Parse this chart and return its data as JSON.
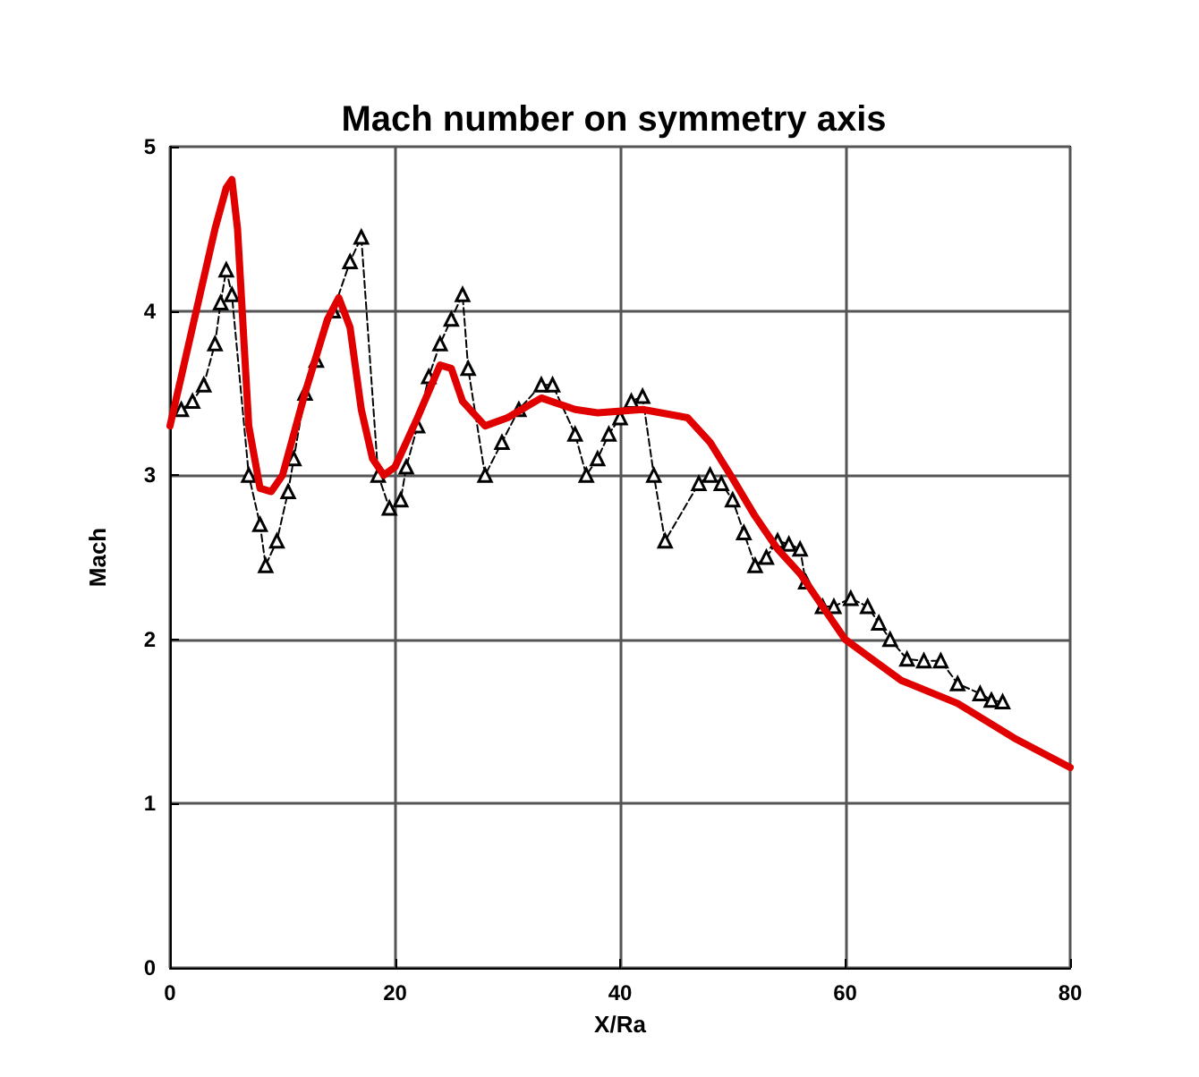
{
  "chart_data": {
    "type": "line",
    "title": "Mach number on symmetry axis",
    "xlabel": "X/Ra",
    "ylabel": "Mach",
    "xlim": [
      0,
      80
    ],
    "ylim": [
      0,
      5
    ],
    "xticks": [
      0,
      20,
      40,
      60,
      80
    ],
    "yticks": [
      0,
      1,
      2,
      3,
      4,
      5
    ],
    "grid": true,
    "series": [
      {
        "color": "#000000",
        "marker": "triangle",
        "line_style": "dashed",
        "x": [
          1,
          2,
          3,
          4,
          4.5,
          5,
          5.5,
          7,
          8,
          8.5,
          9.5,
          10.5,
          11,
          12,
          13,
          14.5,
          16,
          17,
          18.5,
          19.5,
          20.5,
          21,
          22,
          23,
          24,
          25,
          26,
          26.5,
          28,
          29.5,
          31,
          33,
          34,
          36,
          37,
          38,
          39,
          40,
          41,
          42,
          43,
          44,
          47,
          48,
          49,
          50,
          51,
          52,
          53,
          54,
          55,
          56,
          56.5,
          58,
          59,
          60.5,
          62,
          63,
          64,
          65.5,
          67,
          68.5,
          70,
          72,
          73,
          74
        ],
        "values": [
          3.4,
          3.45,
          3.55,
          3.8,
          4.05,
          4.25,
          4.1,
          3.0,
          2.7,
          2.45,
          2.6,
          2.9,
          3.1,
          3.5,
          3.7,
          4.0,
          4.3,
          4.45,
          3.0,
          2.8,
          2.85,
          3.05,
          3.3,
          3.6,
          3.8,
          3.95,
          4.1,
          3.65,
          3.0,
          3.2,
          3.4,
          3.55,
          3.55,
          3.25,
          3.0,
          3.1,
          3.25,
          3.35,
          3.45,
          3.48,
          3.0,
          2.6,
          2.95,
          3.0,
          2.95,
          2.85,
          2.65,
          2.45,
          2.5,
          2.6,
          2.58,
          2.55,
          2.35,
          2.2,
          2.2,
          2.25,
          2.2,
          2.1,
          2.0,
          1.88,
          1.87,
          1.87,
          1.73,
          1.67,
          1.63,
          1.62
        ]
      },
      {
        "color": "#e00000",
        "marker": "none",
        "line_style": "solid",
        "x": [
          0,
          1,
          2,
          3,
          4,
          5,
          5.5,
          6,
          7,
          8,
          9,
          10,
          12,
          14,
          15,
          16,
          17,
          18,
          19,
          20,
          22,
          24,
          25,
          26,
          28,
          30,
          33,
          36,
          38,
          42,
          46,
          48,
          50,
          52,
          54,
          56,
          58,
          60,
          62,
          65,
          70,
          75,
          80
        ],
        "values": [
          3.3,
          3.6,
          3.9,
          4.2,
          4.5,
          4.75,
          4.8,
          4.5,
          3.3,
          2.92,
          2.9,
          3.0,
          3.5,
          3.95,
          4.08,
          3.9,
          3.4,
          3.1,
          3.0,
          3.05,
          3.35,
          3.67,
          3.65,
          3.45,
          3.3,
          3.35,
          3.47,
          3.4,
          3.38,
          3.4,
          3.35,
          3.2,
          2.98,
          2.75,
          2.55,
          2.4,
          2.2,
          2.0,
          1.9,
          1.75,
          1.61,
          1.4,
          1.22
        ]
      }
    ]
  }
}
